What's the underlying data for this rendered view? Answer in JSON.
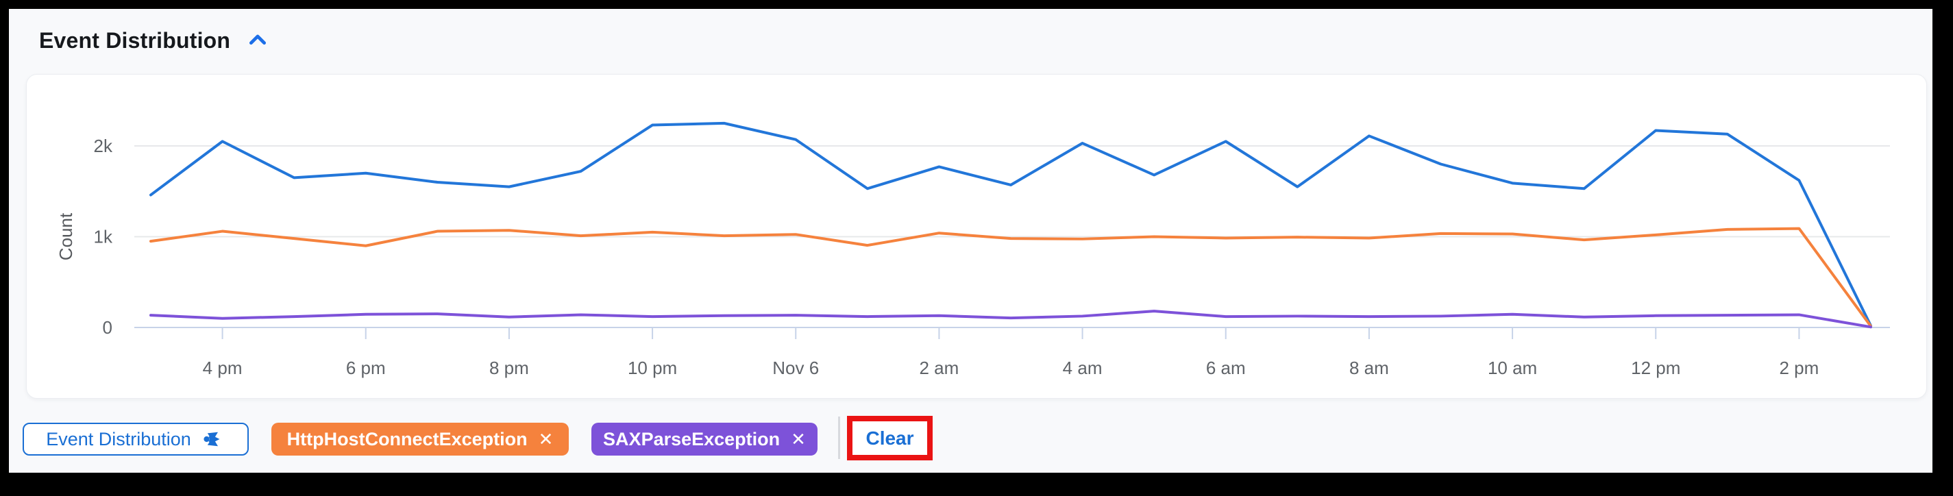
{
  "header": {
    "title": "Event Distribution",
    "accent_color": "#1d6fe8"
  },
  "chart_data": {
    "type": "line",
    "title": "",
    "xlabel": "",
    "ylabel": "Count",
    "grid": true,
    "legend_position": "none",
    "ylim": [
      0,
      2400
    ],
    "y_ticks": [
      {
        "value": 0,
        "label": "0"
      },
      {
        "value": 1000,
        "label": "1k"
      },
      {
        "value": 2000,
        "label": "2k"
      }
    ],
    "x": [
      "3 pm",
      "4 pm",
      "5 pm",
      "6 pm",
      "7 pm",
      "8 pm",
      "9 pm",
      "10 pm",
      "11 pm",
      "Nov 6",
      "1 am",
      "2 am",
      "3 am",
      "4 am",
      "5 am",
      "6 am",
      "7 am",
      "8 am",
      "9 am",
      "10 am",
      "11 am",
      "12 pm",
      "1 pm",
      "2 pm",
      "3 pm"
    ],
    "x_tick_indices": [
      1,
      3,
      5,
      7,
      9,
      11,
      13,
      15,
      17,
      19,
      21,
      23
    ],
    "x_tick_labels": [
      "4 pm",
      "6 pm",
      "8 pm",
      "10 pm",
      "Nov 6",
      "2 am",
      "4 am",
      "6 am",
      "8 am",
      "10 am",
      "12 pm",
      "2 pm"
    ],
    "series": [
      {
        "name": "Event Distribution",
        "color": "#2276d9",
        "values": [
          1460,
          2050,
          1650,
          1700,
          1600,
          1550,
          1720,
          2230,
          2250,
          2070,
          1530,
          1770,
          1570,
          2030,
          1680,
          2050,
          1550,
          2110,
          1800,
          1590,
          1530,
          2170,
          2130,
          1620,
          20
        ]
      },
      {
        "name": "HttpHostConnectException",
        "color": "#f5823d",
        "values": [
          950,
          1060,
          980,
          900,
          1060,
          1070,
          1010,
          1050,
          1010,
          1025,
          905,
          1040,
          980,
          975,
          1000,
          985,
          995,
          985,
          1035,
          1030,
          965,
          1020,
          1080,
          1090,
          15
        ]
      },
      {
        "name": "SAXParseException",
        "color": "#7d52d9",
        "values": [
          135,
          100,
          120,
          145,
          150,
          115,
          140,
          120,
          130,
          135,
          120,
          130,
          105,
          125,
          180,
          120,
          125,
          120,
          125,
          145,
          115,
          130,
          135,
          140,
          5
        ]
      }
    ],
    "axis_color": "#c7d3e8",
    "gridline_color": "#e7e8ea",
    "tick_label_color": "#5f6368"
  },
  "filters": {
    "share_chip": {
      "label": "Event Distribution",
      "icon": "share-icon",
      "color": "#1a6fd4"
    },
    "chips": [
      {
        "label": "HttpHostConnectException",
        "close": "✕",
        "color": "#f5823d"
      },
      {
        "label": "SAXParseException",
        "close": "✕",
        "color": "#7d52d9"
      }
    ],
    "clear_label": "Clear"
  },
  "annotation": {
    "highlight_color": "#ea1313"
  }
}
